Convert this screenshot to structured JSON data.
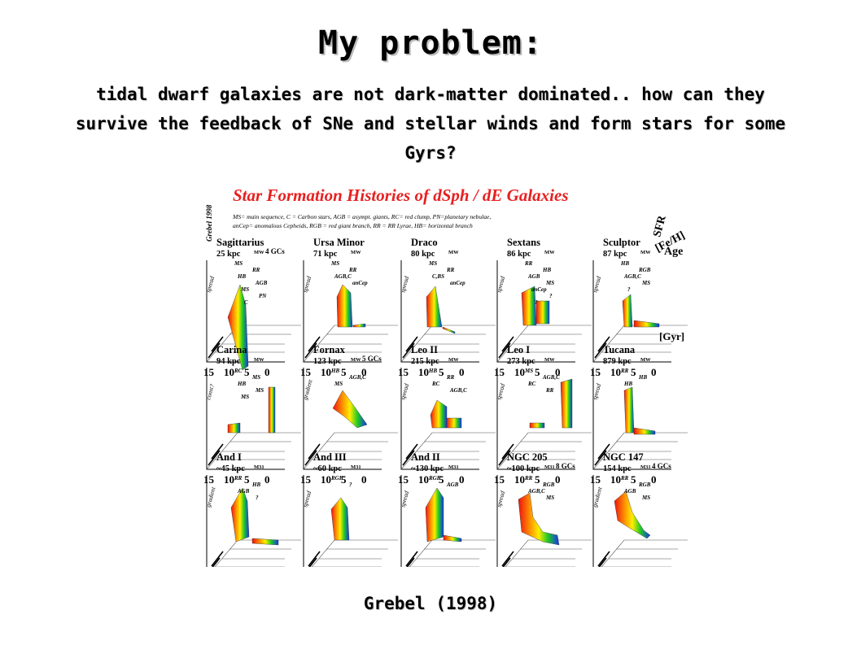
{
  "slide": {
    "title": "My problem:",
    "subtitle_lines": [
      "tidal dwarf galaxies are not dark-matter dominated.. how can they",
      "survive the feedback of SNe and stellar winds and form stars for some",
      "Gyrs?"
    ],
    "caption": "Grebel (1998)"
  },
  "figure": {
    "title": "Star Formation Histories of dSph / dE Galaxies",
    "side_credit": "Grebel 1998",
    "legend_lines": [
      "MS= main sequence, C = Carbon stars, AGB = asympt. giants, RC= red clump, PN=planetary nebulae,",
      "anCep= anomalous Cepheids, RGB = red giant branch, RR = RR Lyrae, HB= horizontal branch"
    ],
    "axis_labels": {
      "sfr": "SFR",
      "feh": "[Fe/H]",
      "age": "Age",
      "age_unit": "[Gyr]"
    },
    "age_ticks": [
      "15",
      "10",
      "5",
      "0"
    ],
    "colors": {
      "old": "#ee1111",
      "mid_orange": "#ff9900",
      "mid_yellow": "#ffee00",
      "mid_green": "#22cc22",
      "young": "#1133ee",
      "title_red": "#e82020"
    },
    "panels": [
      {
        "name": "Sagittarius",
        "distance": "25 kpc",
        "host": "MW",
        "gcs": "4 GCs",
        "feh_label": "spread",
        "pops": [
          "MS",
          "RR",
          "HB",
          "AGB",
          "MS",
          "PN",
          "C"
        ]
      },
      {
        "name": "Ursa Minor",
        "distance": "71 kpc",
        "host": "MW",
        "gcs": "",
        "feh_label": "spread",
        "pops": [
          "MS",
          "RR",
          "AGB,C",
          "anCep"
        ]
      },
      {
        "name": "Draco",
        "distance": "80 kpc",
        "host": "MW",
        "gcs": "",
        "feh_label": "spread",
        "pops": [
          "MS",
          "RR",
          "C,BS",
          "anCep"
        ]
      },
      {
        "name": "Sextans",
        "distance": "86 kpc",
        "host": "MW",
        "gcs": "",
        "feh_label": "spread",
        "pops": [
          "RR",
          "HB",
          "AGB",
          "MS",
          "anCep",
          "?",
          "?"
        ]
      },
      {
        "name": "Sculptor",
        "distance": "87 kpc",
        "host": "MW",
        "gcs": "",
        "feh_label": "spread",
        "pops": [
          "HB",
          "RGB",
          "AGB,C",
          "MS",
          "?"
        ]
      },
      {
        "name": "Carina",
        "distance": "94 kpc",
        "host": "MW",
        "gcs": "",
        "feh_label": "const?",
        "pops": [
          "RC",
          "MS",
          "HB",
          "MS",
          "MS"
        ]
      },
      {
        "name": "Fornax",
        "distance": "123 kpc",
        "host": "MW",
        "gcs": "5 GCs",
        "feh_label": "gradient",
        "pops": [
          "HB",
          "AGB,C",
          "MS"
        ]
      },
      {
        "name": "Leo II",
        "distance": "215 kpc",
        "host": "MW",
        "gcs": "",
        "feh_label": "spread",
        "pops": [
          "HB",
          "RR",
          "RC",
          "AGB,C"
        ]
      },
      {
        "name": "Leo I",
        "distance": "273 kpc",
        "host": "MW",
        "gcs": "",
        "feh_label": "spread",
        "pops": [
          "MS",
          "AGB,C",
          "RC",
          "RR"
        ]
      },
      {
        "name": "Tucana",
        "distance": "879 kpc",
        "host": "MW",
        "gcs": "",
        "feh_label": "spread",
        "pops": [
          "RR",
          "HB",
          "HB"
        ]
      },
      {
        "name": "And I",
        "distance": "~45 kpc",
        "host": "M31",
        "gcs": "",
        "feh_label": "gradient",
        "pops": [
          "RR",
          "HB",
          "AGB",
          "?"
        ]
      },
      {
        "name": "And III",
        "distance": "~60 kpc",
        "host": "M31",
        "gcs": "",
        "feh_label": "spread",
        "pops": [
          "RGB",
          "?"
        ]
      },
      {
        "name": "And II",
        "distance": "~130 kpc",
        "host": "M31",
        "gcs": "",
        "feh_label": "spread",
        "pops": [
          "RGB",
          "AGB"
        ]
      },
      {
        "name": "NGC 205",
        "distance": "~100 kpc",
        "host": "M31",
        "gcs": "8 GCs",
        "feh_label": "spread",
        "pops": [
          "RR",
          "RGB",
          "AGB,C",
          "MS"
        ]
      },
      {
        "name": "NGC 147",
        "distance": "154 kpc",
        "host": "M31",
        "gcs": "4 GCs",
        "feh_label": "gradient",
        "pops": [
          "RR",
          "RGB",
          "AGB",
          "MS"
        ]
      }
    ]
  }
}
